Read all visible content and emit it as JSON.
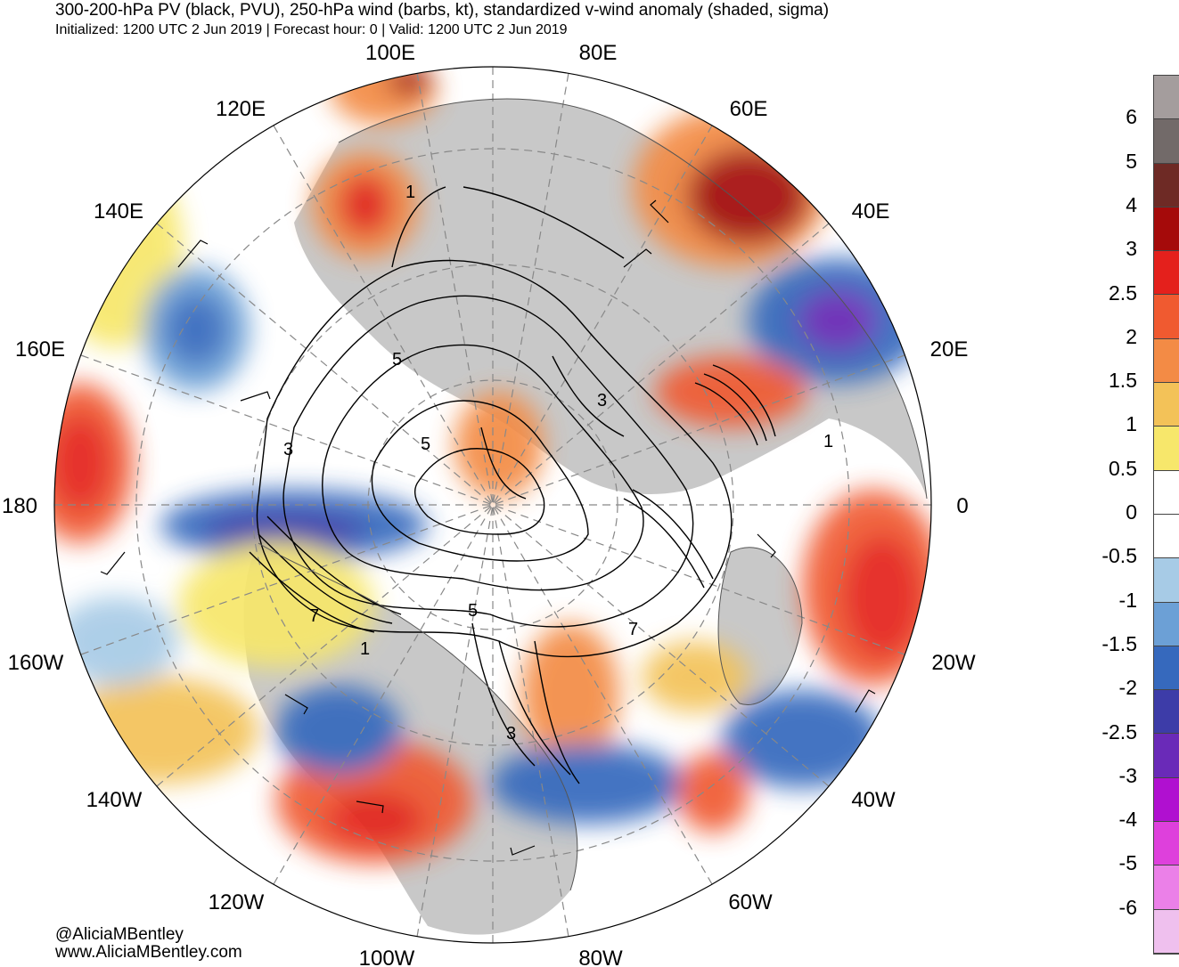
{
  "header": {
    "title": "300-200-hPa PV (black, PVU), 250-hPa wind (barbs, kt), standardized v-wind anomaly (shaded, sigma)",
    "subtitle": "Initialized: 1200 UTC 2 Jun 2019 | Forecast hour: 0 | Valid: 1200 UTC 2 Jun 2019"
  },
  "credits": {
    "handle": "@AliciaMBentley",
    "website": "www.AliciaMBentley.com"
  },
  "map": {
    "projection": "north polar stereographic",
    "longitude_labels": [
      "100E",
      "80E",
      "120E",
      "60E",
      "140E",
      "40E",
      "160E",
      "20E",
      "180",
      "0",
      "160W",
      "20W",
      "140W",
      "40W",
      "120W",
      "60W",
      "100W",
      "80W"
    ],
    "contour_labels": [
      "1",
      "5",
      "3",
      "3",
      "5",
      "7",
      "1",
      "5",
      "7",
      "3",
      "1",
      "3"
    ],
    "colors": {
      "land": "#c8c8c8",
      "ocean": "#ffffff",
      "pv_contour": "#000000",
      "coastline": "#555555"
    }
  },
  "colorbar": {
    "labels": [
      "6",
      "5",
      "4",
      "3",
      "2.5",
      "2",
      "1.5",
      "1",
      "0.5",
      "0",
      "-0.5",
      "-1",
      "-1.5",
      "-2",
      "-2.5",
      "-3",
      "-4",
      "-5",
      "-6"
    ],
    "colors": [
      "#a49d9d",
      "#726a69",
      "#6e2a25",
      "#a50a0a",
      "#e4201c",
      "#f05a30",
      "#f38b45",
      "#f3c258",
      "#f7e76b",
      "#ffffff",
      "#ffffff",
      "#a7cbe6",
      "#6ca0d6",
      "#3669bd",
      "#3d3ca8",
      "#6a2ab8",
      "#b010d0",
      "#de40dc",
      "#eb80e8",
      "#efc0ee"
    ]
  }
}
